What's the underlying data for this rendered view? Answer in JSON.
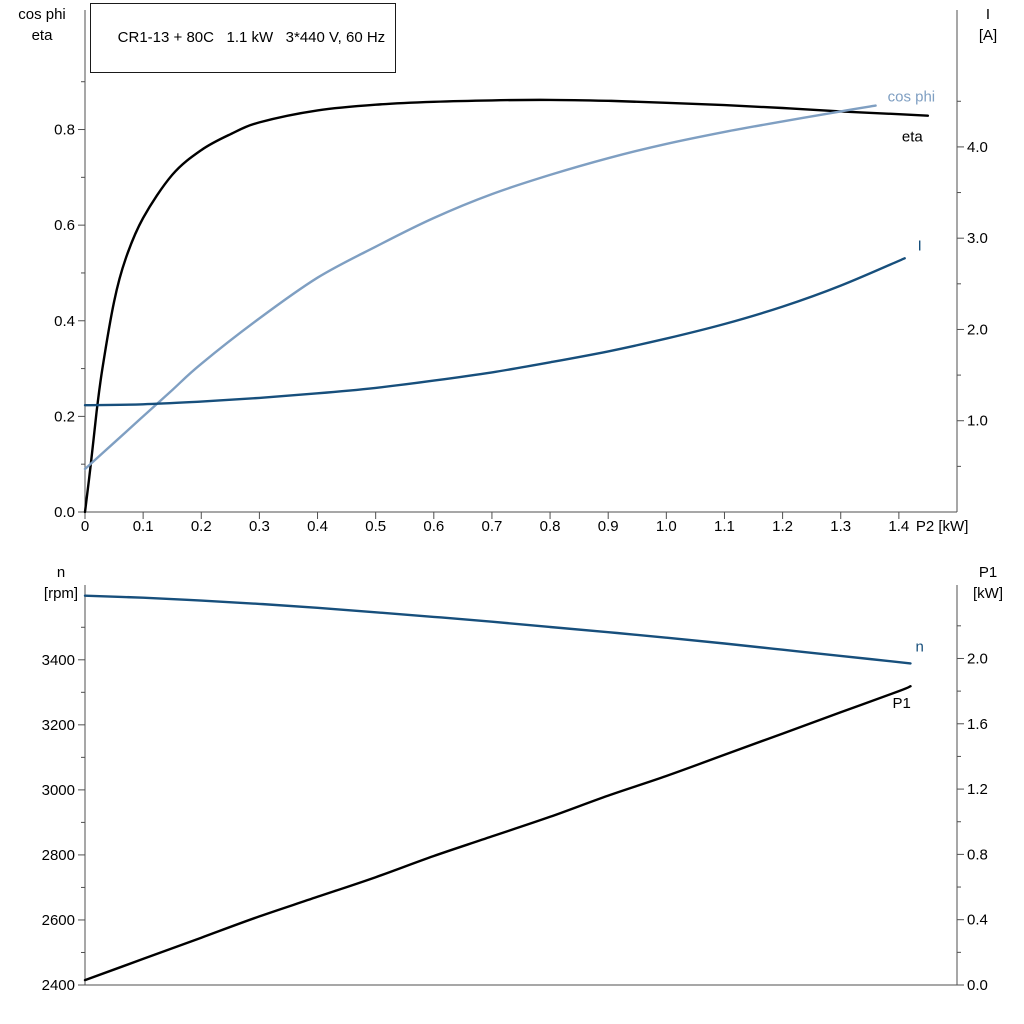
{
  "colors": {
    "axis": "#4f4f4f",
    "black_curve": "#000000",
    "light_blue": "#7f9fc2",
    "dark_blue": "#174f7c",
    "background": "#ffffff"
  },
  "chart_data": [
    {
      "type": "line",
      "title": "CR1-13 + 80C   1.1 kW   3*440 V, 60 Hz",
      "grid": false,
      "x_axis": {
        "label": "P2 [kW]",
        "min": 0,
        "max": 1.5,
        "ticks": [
          0,
          0.1,
          0.2,
          0.3,
          0.4,
          0.5,
          0.6,
          0.7,
          0.8,
          0.9,
          1.0,
          1.1,
          1.2,
          1.3,
          1.4
        ],
        "tick_labels": [
          "0",
          "0.1",
          "0.2",
          "0.3",
          "0.4",
          "0.5",
          "0.6",
          "0.7",
          "0.8",
          "0.9",
          "1.0",
          "1.1",
          "1.2",
          "1.3",
          "1.4"
        ]
      },
      "y_left": {
        "corner_label": "cos phi\neta",
        "min": 0,
        "max": 1.05,
        "ticks": [
          0,
          0.2,
          0.4,
          0.6,
          0.8
        ],
        "tick_labels": [
          "0.0",
          "0.2",
          "0.4",
          "0.6",
          "0.8"
        ],
        "minor_ticks": [
          0.1,
          0.3,
          0.5,
          0.7,
          0.9
        ]
      },
      "y_right": {
        "corner_label": "I\n[A]",
        "min": 0,
        "max": 5.5,
        "ticks": [
          1,
          2,
          3,
          4
        ],
        "tick_labels": [
          "1.0",
          "2.0",
          "3.0",
          "4.0"
        ],
        "minor_ticks": [
          0.5,
          1.5,
          2.5,
          3.5,
          4.5
        ]
      },
      "series": [
        {
          "name": "eta",
          "label": "eta",
          "axis": "left",
          "color": "#000000",
          "width": 2.4,
          "label_dx": -26,
          "label_dy": 26,
          "x": [
            0,
            0.01,
            0.02,
            0.03,
            0.05,
            0.07,
            0.1,
            0.15,
            0.2,
            0.25,
            0.3,
            0.4,
            0.5,
            0.6,
            0.7,
            0.8,
            0.9,
            1.0,
            1.1,
            1.2,
            1.3,
            1.4,
            1.45
          ],
          "y": [
            0,
            0.1,
            0.21,
            0.3,
            0.44,
            0.53,
            0.615,
            0.705,
            0.757,
            0.79,
            0.815,
            0.84,
            0.852,
            0.858,
            0.861,
            0.862,
            0.86,
            0.856,
            0.851,
            0.845,
            0.838,
            0.832,
            0.829
          ]
        },
        {
          "name": "cos phi",
          "label": "cos phi",
          "axis": "left",
          "color": "#7f9fc2",
          "width": 2.4,
          "label_dx": 12,
          "label_dy": -4,
          "x": [
            0,
            0.05,
            0.1,
            0.15,
            0.2,
            0.3,
            0.4,
            0.5,
            0.6,
            0.7,
            0.8,
            0.9,
            1.0,
            1.1,
            1.2,
            1.3,
            1.36
          ],
          "y": [
            0.09,
            0.145,
            0.2,
            0.255,
            0.31,
            0.405,
            0.49,
            0.555,
            0.615,
            0.665,
            0.705,
            0.74,
            0.77,
            0.795,
            0.817,
            0.838,
            0.85
          ]
        },
        {
          "name": "I",
          "label": "I",
          "axis": "right",
          "color": "#174f7c",
          "width": 2.4,
          "label_dx": 13,
          "label_dy": -8,
          "x": [
            0,
            0.1,
            0.2,
            0.3,
            0.4,
            0.5,
            0.6,
            0.7,
            0.8,
            0.9,
            1.0,
            1.1,
            1.2,
            1.3,
            1.41
          ],
          "y": [
            1.17,
            1.18,
            1.21,
            1.25,
            1.3,
            1.36,
            1.44,
            1.53,
            1.64,
            1.76,
            1.9,
            2.06,
            2.25,
            2.48,
            2.78
          ]
        }
      ]
    },
    {
      "type": "line",
      "grid": false,
      "x_axis": {
        "label": "",
        "min": 0,
        "max": 1.5,
        "ticks": [],
        "tick_labels": []
      },
      "y_left": {
        "corner_label": "n\n[rpm]",
        "min": 2400,
        "max": 3630,
        "ticks": [
          2400,
          2600,
          2800,
          3000,
          3200,
          3400
        ],
        "tick_labels": [
          "2400",
          "2600",
          "2800",
          "3000",
          "3200",
          "3400"
        ],
        "minor_ticks": [
          2500,
          2700,
          2900,
          3100,
          3300,
          3500
        ]
      },
      "y_right": {
        "corner_label": "P1\n[kW]",
        "min": 0,
        "max": 2.45,
        "ticks": [
          0,
          0.4,
          0.8,
          1.2,
          1.6,
          2.0
        ],
        "tick_labels": [
          "0.0",
          "0.4",
          "0.8",
          "1.2",
          "1.6",
          "2.0"
        ],
        "minor_ticks": [
          0.2,
          0.6,
          1.0,
          1.4,
          1.8,
          2.2
        ]
      },
      "series": [
        {
          "name": "n",
          "label": "n",
          "axis": "left",
          "color": "#174f7c",
          "width": 2.4,
          "label_dx": 5,
          "label_dy": -12,
          "x": [
            0,
            0.1,
            0.2,
            0.3,
            0.4,
            0.5,
            0.6,
            0.7,
            0.8,
            0.9,
            1.0,
            1.1,
            1.2,
            1.3,
            1.42
          ],
          "y": [
            3597,
            3591,
            3582,
            3572,
            3560,
            3546,
            3532,
            3517,
            3501,
            3485,
            3468,
            3450,
            3431,
            3412,
            3389
          ]
        },
        {
          "name": "P1",
          "label": "P1",
          "axis": "right",
          "color": "#000000",
          "width": 2.4,
          "label_dx": -18,
          "label_dy": 22,
          "x": [
            0,
            0.1,
            0.2,
            0.3,
            0.4,
            0.5,
            0.6,
            0.7,
            0.8,
            0.9,
            1.0,
            1.1,
            1.2,
            1.3,
            1.4,
            1.42
          ],
          "y": [
            0.03,
            0.16,
            0.29,
            0.42,
            0.54,
            0.66,
            0.79,
            0.91,
            1.03,
            1.16,
            1.28,
            1.41,
            1.54,
            1.67,
            1.8,
            1.83
          ]
        }
      ]
    }
  ]
}
